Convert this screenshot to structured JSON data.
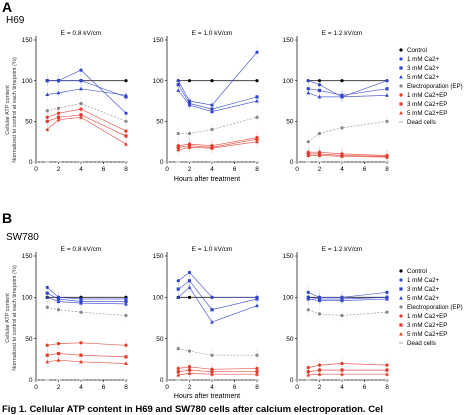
{
  "figure": {
    "caption": "Fig 1. Cellular ATP content in H69 and SW780 cells after calcium electroporation. Cel",
    "ylabel_lines": [
      "Cellular ATP content",
      "Normalized to control at each timepoint (%)"
    ],
    "xlabel": "Hours after treatment",
    "panels": [
      {
        "letter": "A",
        "cell_line": "H69"
      },
      {
        "letter": "B",
        "cell_line": "SW780"
      }
    ],
    "colors": {
      "control": "#000000",
      "ca_blue": "#3344cc",
      "ep_gray": "#888888",
      "ep_red": "#e23b2b",
      "dead": "#aaaaaa"
    }
  },
  "chart_data": [
    {
      "type": "line",
      "panel": "A",
      "title": "E = 0.8 kV/cm",
      "x": [
        0,
        1,
        2,
        4,
        8
      ],
      "xlim": [
        0,
        8
      ],
      "ylim": [
        0,
        150
      ],
      "xticks": [
        "0",
        "2",
        "4",
        "6",
        "8"
      ],
      "yticks": [
        "0",
        "50",
        "100",
        "150"
      ],
      "series": [
        {
          "name": "Control",
          "values": [
            null,
            100,
            100,
            100,
            100
          ]
        },
        {
          "name": "1 mM Ca2+",
          "values": [
            null,
            100,
            100,
            113,
            60
          ]
        },
        {
          "name": "3 mM Ca2+",
          "values": [
            null,
            100,
            100,
            100,
            80
          ]
        },
        {
          "name": "5 mM Ca2+",
          "values": [
            null,
            83,
            85,
            90,
            82
          ]
        },
        {
          "name": "Electroporation (EP)",
          "values": [
            null,
            63,
            66,
            72,
            50
          ]
        },
        {
          "name": "1 mM Ca2+EP",
          "values": [
            null,
            55,
            60,
            65,
            38
          ]
        },
        {
          "name": "3 mM Ca2+EP",
          "values": [
            null,
            50,
            55,
            58,
            32
          ]
        },
        {
          "name": "5 mM Ca2+EP",
          "values": [
            null,
            40,
            52,
            55,
            22
          ]
        },
        {
          "name": "Dead cells",
          "values": [
            0,
            0,
            0,
            0,
            0
          ]
        }
      ]
    },
    {
      "type": "line",
      "panel": "A",
      "title": "E = 1.0 kV/cm",
      "x": [
        0,
        1,
        2,
        4,
        8
      ],
      "xlim": [
        0,
        8
      ],
      "ylim": [
        0,
        150
      ],
      "xticks": [
        "0",
        "2",
        "4",
        "6",
        "8"
      ],
      "yticks": [
        "0",
        "50",
        "100",
        "150"
      ],
      "series": [
        {
          "name": "Control",
          "values": [
            null,
            100,
            100,
            100,
            100
          ]
        },
        {
          "name": "1 mM Ca2+",
          "values": [
            null,
            100,
            75,
            70,
            135
          ]
        },
        {
          "name": "3 mM Ca2+",
          "values": [
            null,
            95,
            72,
            65,
            80
          ]
        },
        {
          "name": "5 mM Ca2+",
          "values": [
            null,
            88,
            70,
            62,
            75
          ]
        },
        {
          "name": "Electroporation (EP)",
          "values": [
            null,
            35,
            35,
            40,
            55
          ]
        },
        {
          "name": "1 mM Ca2+EP",
          "values": [
            null,
            20,
            22,
            20,
            30
          ]
        },
        {
          "name": "3 mM Ca2+EP",
          "values": [
            null,
            18,
            20,
            18,
            28
          ]
        },
        {
          "name": "5 mM Ca2+EP",
          "values": [
            null,
            15,
            18,
            17,
            25
          ]
        },
        {
          "name": "Dead cells",
          "values": [
            0,
            0,
            0,
            0,
            0
          ]
        }
      ]
    },
    {
      "type": "line",
      "panel": "A",
      "title": "E = 1.2 kV/cm",
      "x": [
        0,
        1,
        2,
        4,
        8
      ],
      "xlim": [
        0,
        8
      ],
      "ylim": [
        0,
        150
      ],
      "xticks": [
        "0",
        "2",
        "4",
        "6",
        "8"
      ],
      "yticks": [
        "0",
        "50",
        "100",
        "150"
      ],
      "series": [
        {
          "name": "Control",
          "values": [
            null,
            100,
            100,
            100,
            100
          ]
        },
        {
          "name": "1 mM Ca2+",
          "values": [
            null,
            100,
            95,
            80,
            100
          ]
        },
        {
          "name": "3 mM Ca2+",
          "values": [
            null,
            90,
            88,
            82,
            90
          ]
        },
        {
          "name": "5 mM Ca2+",
          "values": [
            null,
            85,
            80,
            80,
            82
          ]
        },
        {
          "name": "Electroporation (EP)",
          "values": [
            null,
            25,
            35,
            42,
            50
          ]
        },
        {
          "name": "1 mM Ca2+EP",
          "values": [
            null,
            12,
            12,
            10,
            8
          ]
        },
        {
          "name": "3 mM Ca2+EP",
          "values": [
            null,
            10,
            10,
            8,
            7
          ]
        },
        {
          "name": "5 mM Ca2+EP",
          "values": [
            null,
            8,
            8,
            7,
            6
          ]
        },
        {
          "name": "Dead cells",
          "values": [
            0,
            0,
            0,
            0,
            0
          ]
        }
      ]
    },
    {
      "type": "line",
      "panel": "B",
      "title": "E = 0.8 kV/cm",
      "x": [
        0,
        1,
        2,
        4,
        8
      ],
      "xlim": [
        0,
        8
      ],
      "ylim": [
        0,
        150
      ],
      "xticks": [
        "0",
        "2",
        "4",
        "6",
        "8"
      ],
      "yticks": [
        "0",
        "50",
        "100",
        "150"
      ],
      "series": [
        {
          "name": "Control",
          "values": [
            null,
            100,
            100,
            100,
            100
          ]
        },
        {
          "name": "1 mM Ca2+",
          "values": [
            null,
            112,
            100,
            98,
            98
          ]
        },
        {
          "name": "3 mM Ca2+",
          "values": [
            null,
            105,
            98,
            95,
            95
          ]
        },
        {
          "name": "5 mM Ca2+",
          "values": [
            null,
            100,
            95,
            93,
            92
          ]
        },
        {
          "name": "Electroporation (EP)",
          "values": [
            null,
            88,
            85,
            82,
            78
          ]
        },
        {
          "name": "1 mM Ca2+EP",
          "values": [
            null,
            42,
            44,
            45,
            42
          ]
        },
        {
          "name": "3 mM Ca2+EP",
          "values": [
            null,
            30,
            32,
            30,
            28
          ]
        },
        {
          "name": "5 mM Ca2+EP",
          "values": [
            null,
            22,
            24,
            22,
            20
          ]
        },
        {
          "name": "Dead cells",
          "values": [
            0,
            0,
            0,
            0,
            0
          ]
        }
      ]
    },
    {
      "type": "line",
      "panel": "B",
      "title": "E = 1.0 kV/cm",
      "x": [
        0,
        1,
        2,
        4,
        8
      ],
      "xlim": [
        0,
        8
      ],
      "ylim": [
        0,
        150
      ],
      "xticks": [
        "0",
        "2",
        "4",
        "6",
        "8"
      ],
      "yticks": [
        "0",
        "50",
        "100",
        "150"
      ],
      "series": [
        {
          "name": "Control",
          "values": [
            null,
            100,
            100,
            100,
            100
          ]
        },
        {
          "name": "1 mM Ca2+",
          "values": [
            null,
            120,
            130,
            100,
            100
          ]
        },
        {
          "name": "3 mM Ca2+",
          "values": [
            null,
            110,
            120,
            85,
            98
          ]
        },
        {
          "name": "5 mM Ca2+",
          "values": [
            null,
            100,
            112,
            70,
            90
          ]
        },
        {
          "name": "Electroporation (EP)",
          "values": [
            null,
            38,
            35,
            30,
            30
          ]
        },
        {
          "name": "1 mM Ca2+EP",
          "values": [
            null,
            14,
            16,
            13,
            14
          ]
        },
        {
          "name": "3 mM Ca2+EP",
          "values": [
            null,
            10,
            12,
            10,
            10
          ]
        },
        {
          "name": "5 mM Ca2+EP",
          "values": [
            null,
            6,
            8,
            7,
            7
          ]
        },
        {
          "name": "Dead cells",
          "values": [
            0,
            0,
            0,
            0,
            0
          ]
        }
      ]
    },
    {
      "type": "line",
      "panel": "B",
      "title": "E = 1.2 kV/cm",
      "x": [
        0,
        1,
        2,
        4,
        8
      ],
      "xlim": [
        0,
        8
      ],
      "ylim": [
        0,
        150
      ],
      "xticks": [
        "0",
        "2",
        "4",
        "6",
        "8"
      ],
      "yticks": [
        "0",
        "50",
        "100",
        "150"
      ],
      "series": [
        {
          "name": "Control",
          "values": [
            null,
            100,
            100,
            100,
            100
          ]
        },
        {
          "name": "1 mM Ca2+",
          "values": [
            null,
            106,
            100,
            100,
            106
          ]
        },
        {
          "name": "3 mM Ca2+",
          "values": [
            null,
            100,
            98,
            98,
            100
          ]
        },
        {
          "name": "5 mM Ca2+",
          "values": [
            null,
            98,
            96,
            96,
            98
          ]
        },
        {
          "name": "Electroporation (EP)",
          "values": [
            null,
            85,
            80,
            78,
            82
          ]
        },
        {
          "name": "1 mM Ca2+EP",
          "values": [
            null,
            15,
            18,
            20,
            18
          ]
        },
        {
          "name": "3 mM Ca2+EP",
          "values": [
            null,
            10,
            12,
            12,
            12
          ]
        },
        {
          "name": "5 mM Ca2+EP",
          "values": [
            null,
            6,
            7,
            7,
            7
          ]
        },
        {
          "name": "Dead cells",
          "values": [
            0,
            0,
            0,
            0,
            0
          ]
        }
      ]
    }
  ]
}
